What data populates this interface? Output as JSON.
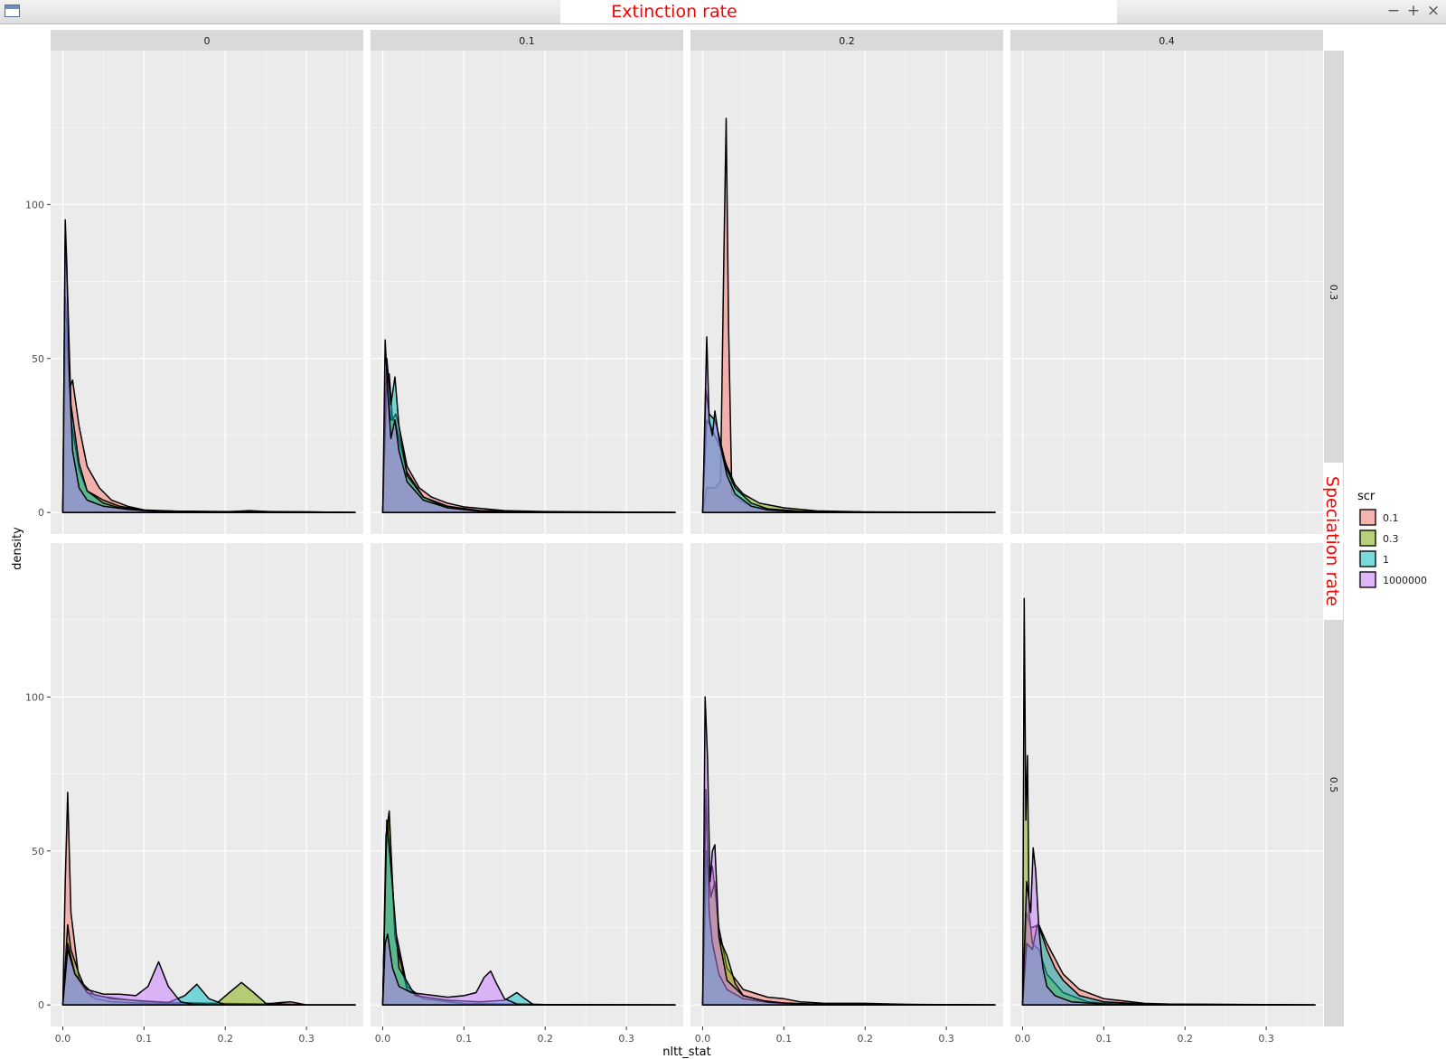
{
  "window": {
    "title": "Extinction rate",
    "minimize_glyph": "−",
    "maximize_glyph": "+",
    "close_glyph": "×",
    "icon": "window-icon"
  },
  "colors": {
    "panel_bg": "#ebebeb",
    "strip_bg": "#d9d9d9",
    "grid": "#ffffff",
    "annotation": "#ff0000",
    "outline": "#000000"
  },
  "chart_data": {
    "type": "area",
    "subtype": "density, faceted grid",
    "xlabel": "nltt_stat",
    "ylabel": "density",
    "xlim": [
      -0.015,
      0.37
    ],
    "ylim": [
      -7,
      150
    ],
    "x_ticks": [
      "0.0",
      "0.1",
      "0.2",
      "0.3"
    ],
    "y_ticks": [
      "0",
      "50",
      "100"
    ],
    "grid": true,
    "col_facet_labels": [
      "0",
      "0.1",
      "0.2",
      "0.4"
    ],
    "row_facet_labels": [
      "0.3",
      "0.5"
    ],
    "row_strip_annotation": "Speciation rate",
    "legend": {
      "title": "scr",
      "position": "right",
      "entries": [
        {
          "label": "0.1",
          "color": "#F8766D"
        },
        {
          "label": "0.3",
          "color": "#7CAE00"
        },
        {
          "label": "1",
          "color": "#00BFC4"
        },
        {
          "label": "1000000",
          "color": "#C77CFF"
        }
      ]
    },
    "fill_alpha": 0.5,
    "panels": [
      {
        "row": "0.3",
        "col": "0",
        "series": [
          {
            "name": "0.1",
            "x": [
              0.0,
              0.004,
              0.008,
              0.012,
              0.02,
              0.03,
              0.045,
              0.06,
              0.08,
              0.1,
              0.14,
              0.2,
              0.25,
              0.3,
              0.36
            ],
            "y": [
              0,
              60,
              40,
              43,
              28,
              15,
              8,
              4,
              2,
              0.8,
              0.4,
              0.3,
              0.3,
              0.2,
              0
            ]
          },
          {
            "name": "0.3",
            "x": [
              0.0,
              0.003,
              0.006,
              0.01,
              0.02,
              0.03,
              0.05,
              0.07,
              0.1,
              0.2,
              0.23,
              0.26,
              0.3,
              0.36
            ],
            "y": [
              0,
              70,
              55,
              30,
              14,
              7,
              4,
              2,
              0.6,
              0.2,
              0.6,
              0.2,
              0.2,
              0
            ]
          },
          {
            "name": "1",
            "x": [
              0.0,
              0.003,
              0.006,
              0.01,
              0.02,
              0.03,
              0.05,
              0.07,
              0.1,
              0.2,
              0.3,
              0.36
            ],
            "y": [
              0,
              90,
              70,
              35,
              16,
              7,
              3,
              1.5,
              0.5,
              0.2,
              0.1,
              0
            ]
          },
          {
            "name": "1000000",
            "x": [
              0.0,
              0.003,
              0.005,
              0.008,
              0.012,
              0.02,
              0.03,
              0.05,
              0.08,
              0.12,
              0.2,
              0.36
            ],
            "y": [
              0,
              95,
              80,
              45,
              20,
              8,
              4,
              2,
              1,
              0.3,
              0.1,
              0
            ]
          }
        ]
      },
      {
        "row": "0.3",
        "col": "0.1",
        "series": [
          {
            "name": "0.1",
            "x": [
              0.0,
              0.004,
              0.008,
              0.012,
              0.016,
              0.02,
              0.03,
              0.045,
              0.06,
              0.08,
              0.1,
              0.15,
              0.2,
              0.3,
              0.36
            ],
            "y": [
              0,
              40,
              45,
              30,
              32,
              28,
              15,
              8,
              5,
              3,
              1.8,
              0.6,
              0.3,
              0.1,
              0
            ]
          },
          {
            "name": "0.3",
            "x": [
              0.0,
              0.005,
              0.01,
              0.015,
              0.02,
              0.03,
              0.05,
              0.08,
              0.12,
              0.2,
              0.36
            ],
            "y": [
              0,
              42,
              30,
              30,
              24,
              13,
              5,
              2,
              0.6,
              0.2,
              0
            ]
          },
          {
            "name": "1",
            "x": [
              0.0,
              0.005,
              0.01,
              0.015,
              0.02,
              0.03,
              0.05,
              0.08,
              0.12,
              0.2,
              0.36
            ],
            "y": [
              0,
              50,
              35,
              44,
              28,
              12,
              5,
              1.5,
              0.4,
              0.1,
              0
            ]
          },
          {
            "name": "1000000",
            "x": [
              0.0,
              0.003,
              0.006,
              0.01,
              0.015,
              0.02,
              0.03,
              0.05,
              0.08,
              0.12,
              0.2,
              0.36
            ],
            "y": [
              0,
              56,
              40,
              24,
              30,
              20,
              10,
              4,
              1.5,
              0.4,
              0.1,
              0
            ]
          }
        ]
      },
      {
        "row": "0.3",
        "col": "0.2",
        "series": [
          {
            "name": "0.1",
            "x": [
              0.0,
              0.005,
              0.015,
              0.022,
              0.026,
              0.029,
              0.032,
              0.036,
              0.045,
              0.06,
              0.08,
              0.12,
              0.2,
              0.36
            ],
            "y": [
              0,
              8,
              8,
              10,
              80,
              128,
              60,
              6,
              4,
              2,
              1,
              0.3,
              0.1,
              0
            ]
          },
          {
            "name": "0.3",
            "x": [
              0.0,
              0.005,
              0.01,
              0.02,
              0.03,
              0.04,
              0.05,
              0.07,
              0.1,
              0.14,
              0.2,
              0.3,
              0.36
            ],
            "y": [
              0,
              30,
              28,
              22,
              15,
              9,
              6,
              3,
              1.5,
              0.5,
              0.2,
              0.1,
              0
            ]
          },
          {
            "name": "1",
            "x": [
              0.0,
              0.004,
              0.008,
              0.015,
              0.02,
              0.03,
              0.04,
              0.06,
              0.08,
              0.12,
              0.2,
              0.36
            ],
            "y": [
              0,
              40,
              32,
              30,
              25,
              14,
              8,
              3,
              1.2,
              0.4,
              0.1,
              0
            ]
          },
          {
            "name": "1000000",
            "x": [
              0.0,
              0.005,
              0.008,
              0.012,
              0.015,
              0.02,
              0.03,
              0.04,
              0.06,
              0.08,
              0.12,
              0.36
            ],
            "y": [
              0,
              57,
              30,
              25,
              33,
              24,
              12,
              6,
              2,
              0.8,
              0.2,
              0
            ]
          }
        ]
      },
      {
        "row": "0.3",
        "col": "0.4",
        "series": []
      },
      {
        "row": "0.5",
        "col": "0",
        "series": [
          {
            "name": "0.1",
            "x": [
              0.0,
              0.003,
              0.006,
              0.01,
              0.02,
              0.04,
              0.1,
              0.18,
              0.25,
              0.27,
              0.28,
              0.29,
              0.3,
              0.36
            ],
            "y": [
              0,
              40,
              69,
              30,
              8,
              3,
              1,
              0.5,
              0.3,
              0.8,
              1,
              0.5,
              0,
              0
            ]
          },
          {
            "name": "0.3",
            "x": [
              0.0,
              0.006,
              0.01,
              0.02,
              0.03,
              0.04,
              0.06,
              0.1,
              0.16,
              0.19,
              0.205,
              0.22,
              0.235,
              0.25,
              0.3,
              0.36
            ],
            "y": [
              0,
              26,
              18,
              10,
              4,
              2,
              1,
              0.5,
              0.3,
              0.6,
              4,
              7.3,
              4,
              0.5,
              0,
              0
            ]
          },
          {
            "name": "1",
            "x": [
              0.0,
              0.006,
              0.015,
              0.03,
              0.06,
              0.1,
              0.13,
              0.15,
              0.165,
              0.18,
              0.2,
              0.36
            ],
            "y": [
              0,
              20,
              10,
              4,
              2,
              1.3,
              0.8,
              3,
              6.7,
              2,
              0,
              0
            ]
          },
          {
            "name": "1000000",
            "x": [
              0.0,
              0.006,
              0.015,
              0.03,
              0.05,
              0.07,
              0.09,
              0.105,
              0.118,
              0.13,
              0.145,
              0.16,
              0.2,
              0.36
            ],
            "y": [
              0,
              18,
              10,
              5,
              3.5,
              3.5,
              3,
              6,
              14,
              6,
              1,
              0.2,
              0,
              0
            ]
          }
        ]
      },
      {
        "row": "0.5",
        "col": "0.1",
        "series": [
          {
            "name": "0.1",
            "x": [
              0.0,
              0.004,
              0.008,
              0.015,
              0.03,
              0.05,
              0.1,
              0.2,
              0.36
            ],
            "y": [
              0,
              50,
              60,
              25,
              6,
              2,
              0.5,
              0.1,
              0
            ]
          },
          {
            "name": "0.3",
            "x": [
              0.0,
              0.004,
              0.008,
              0.015,
              0.03,
              0.05,
              0.1,
              0.2,
              0.36
            ],
            "y": [
              0,
              55,
              63,
              22,
              5,
              2,
              0.4,
              0.1,
              0
            ]
          },
          {
            "name": "1",
            "x": [
              0.0,
              0.005,
              0.01,
              0.02,
              0.04,
              0.08,
              0.12,
              0.15,
              0.165,
              0.175,
              0.185,
              0.2,
              0.36
            ],
            "y": [
              0,
              60,
              45,
              12,
              3,
              1.5,
              1,
              1.5,
              4,
              2,
              0.2,
              0,
              0
            ]
          },
          {
            "name": "1000000",
            "x": [
              0.0,
              0.003,
              0.006,
              0.012,
              0.02,
              0.035,
              0.05,
              0.08,
              0.1,
              0.115,
              0.125,
              0.133,
              0.14,
              0.15,
              0.165,
              0.2,
              0.36
            ],
            "y": [
              0,
              20,
              23,
              12,
              6,
              4,
              3.5,
              2.5,
              3,
              4,
              9,
              11,
              7,
              2,
              0.3,
              0,
              0
            ]
          }
        ]
      },
      {
        "row": "0.5",
        "col": "0.2",
        "series": [
          {
            "name": "0.1",
            "x": [
              0.0,
              0.004,
              0.008,
              0.012,
              0.02,
              0.03,
              0.05,
              0.08,
              0.1,
              0.12,
              0.15,
              0.2,
              0.25,
              0.36
            ],
            "y": [
              0,
              50,
              40,
              45,
              25,
              12,
              5,
              2.5,
              2,
              1,
              0.5,
              0.5,
              0.2,
              0
            ]
          },
          {
            "name": "0.3",
            "x": [
              0.0,
              0.005,
              0.01,
              0.015,
              0.02,
              0.03,
              0.04,
              0.05,
              0.07,
              0.1,
              0.15,
              0.36
            ],
            "y": [
              0,
              50,
              35,
              40,
              22,
              16,
              7,
              3,
              1.5,
              0.6,
              0.2,
              0
            ]
          },
          {
            "name": "1",
            "x": [
              0.0,
              0.004,
              0.008,
              0.012,
              0.02,
              0.03,
              0.05,
              0.08,
              0.12,
              0.36
            ],
            "y": [
              0,
              70,
              30,
              20,
              10,
              5,
              2,
              0.8,
              0.2,
              0
            ]
          },
          {
            "name": "1000000",
            "x": [
              0.0,
              0.003,
              0.006,
              0.009,
              0.012,
              0.015,
              0.02,
              0.03,
              0.05,
              0.08,
              0.12,
              0.36
            ],
            "y": [
              0,
              100,
              80,
              40,
              50,
              52,
              22,
              8,
              3,
              1,
              0.3,
              0
            ]
          }
        ]
      },
      {
        "row": "0.5",
        "col": "0.4",
        "series": [
          {
            "name": "0.1",
            "x": [
              0.0,
              0.005,
              0.01,
              0.02,
              0.03,
              0.04,
              0.05,
              0.07,
              0.1,
              0.15,
              0.2,
              0.36
            ],
            "y": [
              0,
              30,
              25,
              26,
              20,
              15,
              10,
              5,
              2,
              0.5,
              0.1,
              0
            ]
          },
          {
            "name": "0.3",
            "x": [
              0.0,
              0.002,
              0.004,
              0.006,
              0.008,
              0.012,
              0.02,
              0.03,
              0.05,
              0.08,
              0.12,
              0.36
            ],
            "y": [
              0,
              132,
              60,
              81,
              30,
              20,
              18,
              10,
              4,
              1,
              0.2,
              0
            ]
          },
          {
            "name": "1",
            "x": [
              0.0,
              0.005,
              0.012,
              0.018,
              0.022,
              0.03,
              0.04,
              0.05,
              0.07,
              0.1,
              0.15,
              0.36
            ],
            "y": [
              0,
              20,
              18,
              26,
              24,
              18,
              12,
              8,
              3,
              1,
              0.3,
              0
            ]
          },
          {
            "name": "1000000",
            "x": [
              0.0,
              0.005,
              0.01,
              0.013,
              0.016,
              0.02,
              0.025,
              0.03,
              0.04,
              0.06,
              0.1,
              0.36
            ],
            "y": [
              0,
              40,
              30,
              51,
              44,
              25,
              12,
              6,
              3,
              1,
              0.3,
              0
            ]
          }
        ]
      }
    ]
  }
}
